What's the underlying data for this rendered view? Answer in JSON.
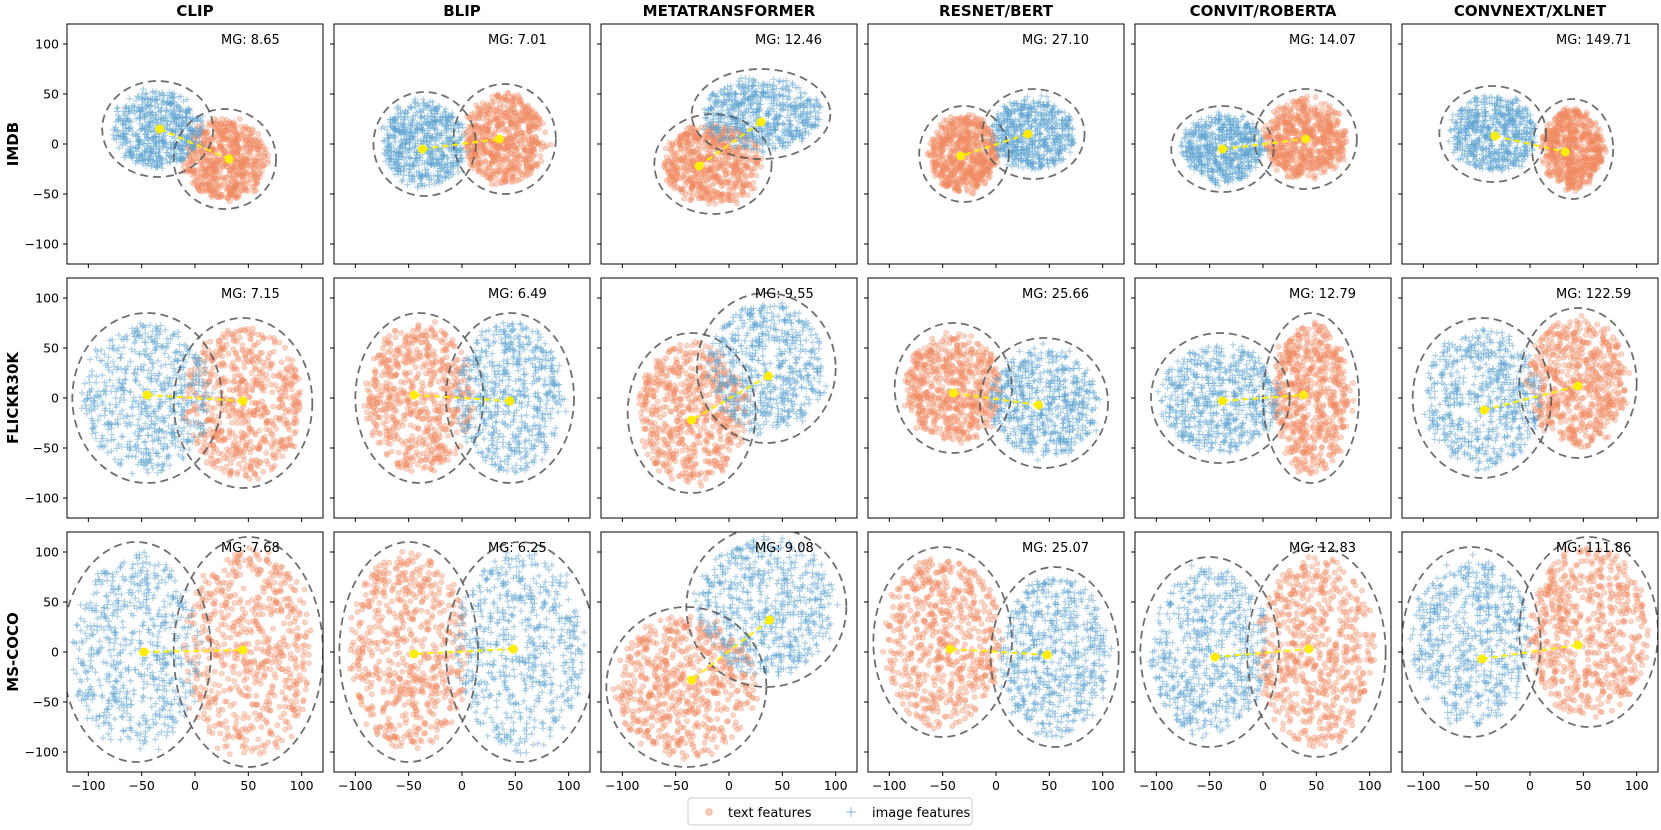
{
  "chart_data": {
    "type": "scatter",
    "description_kind": "t-SNE embedding grid",
    "columns": [
      "CLIP",
      "BLIP",
      "METATRANSFORMER",
      "RESNET/BERT",
      "CONVIT/ROBERTA",
      "CONVNEXT/XLNET"
    ],
    "rows": [
      "IMDB",
      "FLICKR30K",
      "MS-COCO"
    ],
    "xlim": [
      -120,
      120
    ],
    "ylim": [
      -120,
      120
    ],
    "xticks": [
      "−100",
      "−50",
      "0",
      "50",
      "100"
    ],
    "yticks": [
      "100",
      "50",
      "0",
      "−50",
      "−100"
    ],
    "xtick_values": [
      -100,
      -50,
      0,
      50,
      100
    ],
    "ytick_values": [
      100,
      50,
      0,
      -50,
      -100
    ],
    "legend": {
      "position": "bottom-center",
      "text": "text features",
      "image": "image features"
    },
    "colors": {
      "text": "#f08a60",
      "image": "#5da3cf",
      "centroid": "#ffee00",
      "boundary": "#555555"
    },
    "panels": [
      [
        {
          "mg": "MG: 8.65",
          "image": {
            "cx": -35,
            "cy": 15,
            "rx": 42,
            "ry": 38
          },
          "text": {
            "cx": 28,
            "cy": -15,
            "rx": 38,
            "ry": 40
          },
          "img_centroid": [
            -33,
            15
          ],
          "txt_centroid": [
            32,
            -15
          ]
        },
        {
          "mg": "MG: 7.01",
          "image": {
            "cx": -35,
            "cy": 0,
            "rx": 38,
            "ry": 42
          },
          "text": {
            "cx": 40,
            "cy": 5,
            "rx": 38,
            "ry": 45
          },
          "img_centroid": [
            -37,
            -5
          ],
          "txt_centroid": [
            35,
            5
          ]
        },
        {
          "mg": "MG: 12.46",
          "image": {
            "cx": 30,
            "cy": 30,
            "rx": 55,
            "ry": 35
          },
          "text": {
            "cx": -15,
            "cy": -20,
            "rx": 45,
            "ry": 40
          },
          "img_centroid": [
            30,
            22
          ],
          "txt_centroid": [
            -28,
            -22
          ]
        },
        {
          "mg": "MG: 27.10",
          "image": {
            "cx": 35,
            "cy": 10,
            "rx": 38,
            "ry": 35
          },
          "text": {
            "cx": -30,
            "cy": -10,
            "rx": 32,
            "ry": 38
          },
          "img_centroid": [
            30,
            10
          ],
          "txt_centroid": [
            -33,
            -12
          ]
        },
        {
          "mg": "MG: 14.07",
          "image": {
            "cx": -38,
            "cy": -5,
            "rx": 38,
            "ry": 33
          },
          "text": {
            "cx": 40,
            "cy": 5,
            "rx": 38,
            "ry": 40
          },
          "img_centroid": [
            -38,
            -5
          ],
          "txt_centroid": [
            40,
            5
          ]
        },
        {
          "mg": "MG: 149.71",
          "image": {
            "cx": -35,
            "cy": 10,
            "rx": 40,
            "ry": 38
          },
          "text": {
            "cx": 40,
            "cy": -5,
            "rx": 28,
            "ry": 40
          },
          "img_centroid": [
            -33,
            8
          ],
          "txt_centroid": [
            33,
            -8
          ]
        }
      ],
      [
        {
          "mg": "MG: 7.15",
          "image": {
            "cx": -45,
            "cy": 0,
            "rx": 60,
            "ry": 75
          },
          "text": {
            "cx": 45,
            "cy": -5,
            "rx": 55,
            "ry": 75
          },
          "img_centroid": [
            -45,
            3
          ],
          "txt_centroid": [
            45,
            -3
          ]
        },
        {
          "mg": "MG: 6.49",
          "image": {
            "cx": 45,
            "cy": 0,
            "rx": 50,
            "ry": 75
          },
          "text": {
            "cx": -40,
            "cy": 0,
            "rx": 50,
            "ry": 75
          },
          "img_centroid": [
            45,
            -3
          ],
          "txt_centroid": [
            -45,
            3
          ]
        },
        {
          "mg": "MG: 9.55",
          "image": {
            "cx": 35,
            "cy": 30,
            "rx": 55,
            "ry": 65
          },
          "text": {
            "cx": -35,
            "cy": -15,
            "rx": 50,
            "ry": 70
          },
          "img_centroid": [
            37,
            22
          ],
          "txt_centroid": [
            -35,
            -22
          ]
        },
        {
          "mg": "MG: 25.66",
          "image": {
            "cx": 45,
            "cy": -5,
            "rx": 50,
            "ry": 55
          },
          "text": {
            "cx": -40,
            "cy": 10,
            "rx": 45,
            "ry": 55
          },
          "img_centroid": [
            40,
            -7
          ],
          "txt_centroid": [
            -40,
            5
          ]
        },
        {
          "mg": "MG: 12.79",
          "image": {
            "cx": -40,
            "cy": 0,
            "rx": 55,
            "ry": 55
          },
          "text": {
            "cx": 45,
            "cy": 0,
            "rx": 35,
            "ry": 75
          },
          "img_centroid": [
            -38,
            -3
          ],
          "txt_centroid": [
            38,
            3
          ]
        },
        {
          "mg": "MG: 122.59",
          "image": {
            "cx": -45,
            "cy": 0,
            "rx": 55,
            "ry": 70
          },
          "text": {
            "cx": 45,
            "cy": 15,
            "rx": 45,
            "ry": 65
          },
          "img_centroid": [
            -43,
            -12
          ],
          "txt_centroid": [
            45,
            12
          ]
        }
      ],
      [
        {
          "mg": "MG: 7.68",
          "image": {
            "cx": -55,
            "cy": 0,
            "rx": 60,
            "ry": 100
          },
          "text": {
            "cx": 50,
            "cy": 0,
            "rx": 60,
            "ry": 105
          },
          "img_centroid": [
            -48,
            0
          ],
          "txt_centroid": [
            45,
            2
          ]
        },
        {
          "mg": "MG: 6.25",
          "image": {
            "cx": 55,
            "cy": 0,
            "rx": 60,
            "ry": 100
          },
          "text": {
            "cx": -50,
            "cy": 0,
            "rx": 55,
            "ry": 100
          },
          "img_centroid": [
            48,
            3
          ],
          "txt_centroid": [
            -45,
            -2
          ]
        },
        {
          "mg": "MG: 9.08",
          "image": {
            "cx": 35,
            "cy": 45,
            "rx": 65,
            "ry": 70
          },
          "text": {
            "cx": -40,
            "cy": -35,
            "rx": 65,
            "ry": 70
          },
          "img_centroid": [
            38,
            32
          ],
          "txt_centroid": [
            -35,
            -28
          ]
        },
        {
          "mg": "MG: 25.07",
          "image": {
            "cx": 55,
            "cy": -5,
            "rx": 50,
            "ry": 80
          },
          "text": {
            "cx": -50,
            "cy": 10,
            "rx": 55,
            "ry": 85
          },
          "img_centroid": [
            48,
            -3
          ],
          "txt_centroid": [
            -43,
            3
          ]
        },
        {
          "mg": "MG: 12.83",
          "image": {
            "cx": -50,
            "cy": 0,
            "rx": 55,
            "ry": 85
          },
          "text": {
            "cx": 50,
            "cy": 0,
            "rx": 55,
            "ry": 95
          },
          "img_centroid": [
            -45,
            -5
          ],
          "txt_centroid": [
            43,
            3
          ]
        },
        {
          "mg": "MG: 111.86",
          "image": {
            "cx": -55,
            "cy": 10,
            "rx": 55,
            "ry": 85
          },
          "text": {
            "cx": 55,
            "cy": 20,
            "rx": 55,
            "ry": 85
          },
          "img_centroid": [
            -45,
            -7
          ],
          "txt_centroid": [
            45,
            7
          ]
        }
      ]
    ]
  }
}
